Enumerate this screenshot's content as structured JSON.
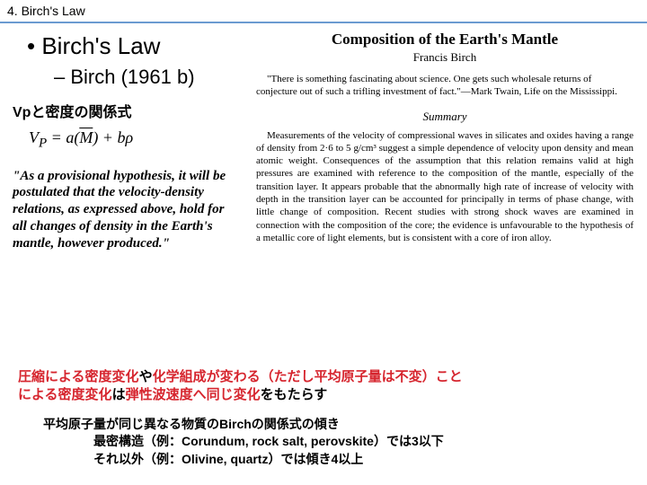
{
  "header": {
    "title": "4. Birch's Law"
  },
  "main": {
    "title": "Birch's Law",
    "subtitle": "Birch (1961 b)",
    "vp_label": "Vpと密度の関係式",
    "formula_html": "V<sub>P</sub> = a(<span class=\"over\">M</span>) + bρ",
    "quote": "\"As a provisional hypothesis, it will be postulated that the velocity-density relations, as expressed above, hold for all changes of density in the Earth's mantle, however produced.\""
  },
  "paper": {
    "title": "Composition of the Earth's Mantle",
    "author": "Francis Birch",
    "epigraph": "\"There is something fascinating about science. One gets such wholesale returns of conjecture out of such a trifling investment of fact.\"—Mark Twain, Life on the Mississippi.",
    "summary_heading": "Summary",
    "summary": "Measurements of the velocity of compressional waves in silicates and oxides having a range of density from 2·6 to 5 g/cm³ suggest a simple dependence of velocity upon density and mean atomic weight. Consequences of the assumption that this relation remains valid at high pressures are examined with reference to the composition of the mantle, especially of the transition layer. It appears probable that the abnormally high rate of increase of velocity with depth in the transition layer can be accounted for principally in terms of phase change, with little change of composition. Recent studies with strong shock waves are examined in connection with the composition of the core; the evidence is unfavourable to the hypothesis of a metallic core of light elements, but is consistent with a core of iron alloy."
  },
  "bottom": {
    "line1_parts": [
      {
        "cls": "red",
        "t": "圧縮による密度変化"
      },
      {
        "cls": "blk",
        "t": "や"
      },
      {
        "cls": "red",
        "t": "化学組成が変わる（ただし平均原子量は不変）こと"
      }
    ],
    "line2_parts": [
      {
        "cls": "red",
        "t": "による密度変化"
      },
      {
        "cls": "blk",
        "t": "は"
      },
      {
        "cls": "red",
        "t": "弾性波速度へ同じ変化"
      },
      {
        "cls": "blk",
        "t": "をもたらす"
      }
    ],
    "sub1": "平均原子量が同じ異なる物質のBirchの関係式の傾き",
    "sub2": "最密構造（例：Corundum, rock salt, perovskite）では3以下",
    "sub3": "それ以外（例：Olivine, quartz）では傾き4以上"
  }
}
